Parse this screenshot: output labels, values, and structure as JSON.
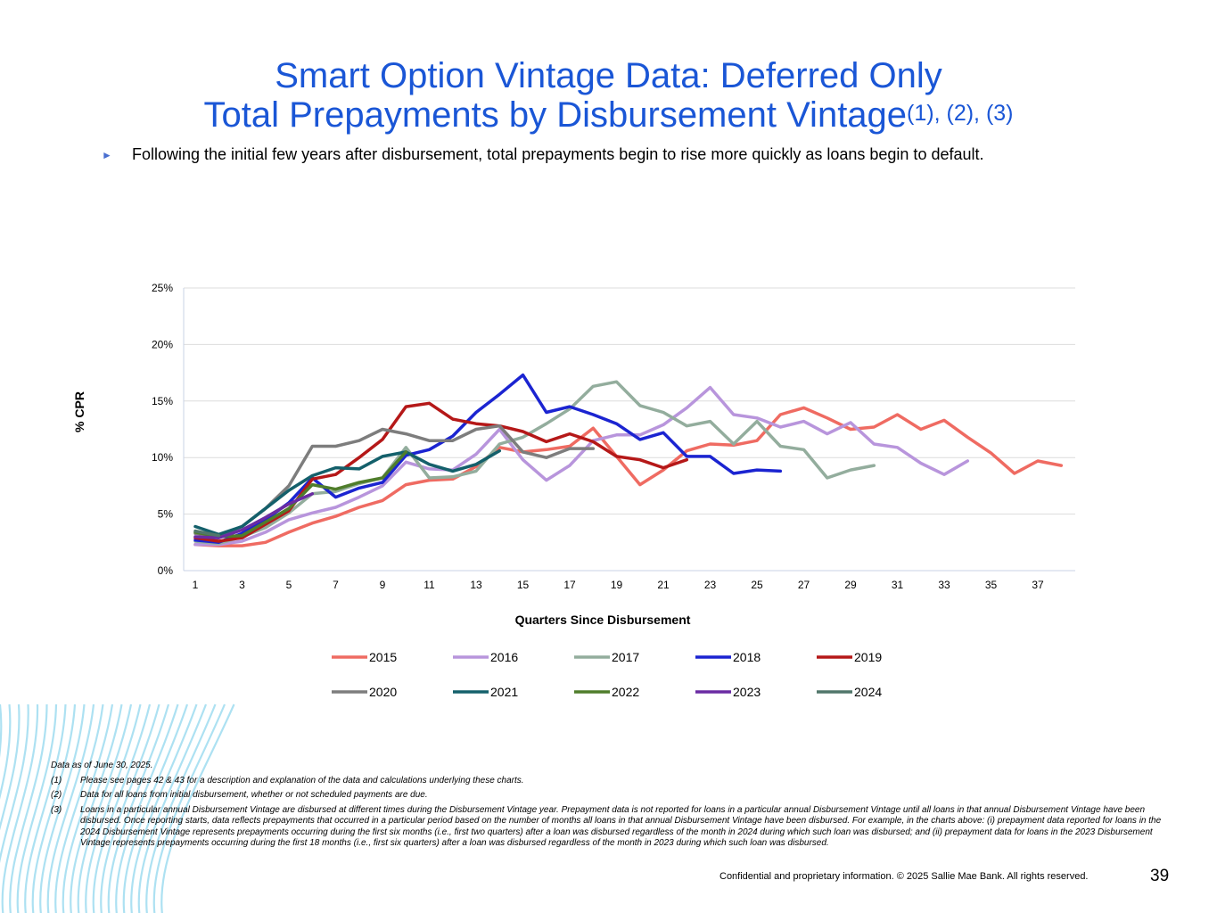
{
  "title_line1": "Smart Option Vintage Data: Deferred Only",
  "title_line2": "Total Prepayments by Disbursement Vintage",
  "title_superscript": "(1), (2), (3)",
  "bullet_text": "Following the initial few years after disbursement, total prepayments begin to rise more quickly as loans begin to default.",
  "chart_data": {
    "type": "line",
    "title": "",
    "xlabel": "Quarters Since Disbursement",
    "ylabel": "% CPR",
    "xlim": [
      1,
      38
    ],
    "ylim": [
      0,
      25
    ],
    "x_ticks": [
      "1",
      "3",
      "5",
      "7",
      "9",
      "11",
      "13",
      "15",
      "17",
      "19",
      "21",
      "23",
      "25",
      "27",
      "29",
      "31",
      "33",
      "35",
      "37"
    ],
    "y_ticks": [
      "0%",
      "5%",
      "10%",
      "15%",
      "20%",
      "25%"
    ],
    "y_tick_values": [
      0,
      5,
      10,
      15,
      20,
      25
    ],
    "grid": true,
    "legend": "bottom",
    "series": [
      {
        "name": "2015",
        "color": "#ef6b62",
        "values": [
          2.3,
          2.2,
          2.2,
          2.5,
          3.4,
          4.2,
          4.8,
          5.6,
          6.2,
          7.6,
          8.0,
          8.1,
          9.2,
          10.9,
          10.5,
          10.7,
          11.0,
          12.6,
          10.1,
          7.6,
          8.9,
          10.6,
          11.2,
          11.1,
          11.5,
          13.8,
          14.4,
          13.5,
          12.5,
          12.7,
          13.8,
          12.5,
          13.3,
          11.8,
          10.4,
          8.6,
          9.7,
          9.3
        ]
      },
      {
        "name": "2016",
        "color": "#b895dc",
        "values": [
          2.3,
          2.3,
          2.6,
          3.4,
          4.5,
          5.1,
          5.6,
          6.5,
          7.5,
          9.6,
          9.0,
          8.9,
          10.3,
          12.5,
          9.8,
          8.0,
          9.3,
          11.5,
          12.0,
          12.0,
          12.9,
          14.4,
          16.2,
          13.8,
          13.5,
          12.7,
          13.2,
          12.1,
          13.1,
          11.2,
          10.9,
          9.5,
          8.5,
          9.7
        ]
      },
      {
        "name": "2017",
        "color": "#93ad9d",
        "values": [
          2.6,
          2.4,
          3.0,
          3.8,
          5.1,
          6.8,
          7.0,
          7.7,
          8.2,
          10.9,
          8.2,
          8.3,
          8.8,
          11.2,
          11.8,
          13.0,
          14.3,
          16.3,
          16.7,
          14.6,
          14.0,
          12.8,
          13.2,
          11.2,
          13.2,
          11.0,
          10.7,
          8.2,
          8.9,
          9.3
        ]
      },
      {
        "name": "2018",
        "color": "#1b24d1",
        "values": [
          2.7,
          2.5,
          3.3,
          4.5,
          6.0,
          8.2,
          6.5,
          7.3,
          7.8,
          10.2,
          10.7,
          11.9,
          14.0,
          15.6,
          17.3,
          14.0,
          14.5,
          13.8,
          13.0,
          11.6,
          12.2,
          10.1,
          10.1,
          8.6,
          8.9,
          8.8
        ]
      },
      {
        "name": "2019",
        "color": "#b51818",
        "values": [
          2.9,
          2.6,
          2.9,
          4.1,
          5.3,
          8.1,
          8.5,
          10.0,
          11.6,
          14.5,
          14.8,
          13.4,
          13.0,
          12.8,
          12.3,
          11.4,
          12.1,
          11.4,
          10.1,
          9.8,
          9.1,
          9.8
        ]
      },
      {
        "name": "2020",
        "color": "#7d7d7d",
        "values": [
          3.3,
          3.1,
          3.9,
          5.5,
          7.5,
          11.0,
          11.0,
          11.5,
          12.5,
          12.1,
          11.5,
          11.5,
          12.5,
          12.8,
          10.5,
          10.0,
          10.8,
          10.8
        ]
      },
      {
        "name": "2021",
        "color": "#14606b",
        "values": [
          3.9,
          3.2,
          3.9,
          5.5,
          7.1,
          8.4,
          9.1,
          9.0,
          10.1,
          10.5,
          9.4,
          8.8,
          9.4,
          10.6
        ]
      },
      {
        "name": "2022",
        "color": "#4f7d2b",
        "values": [
          3.4,
          3.0,
          3.1,
          4.3,
          5.5,
          7.6,
          7.2,
          7.8,
          8.2,
          10.5
        ]
      },
      {
        "name": "2023",
        "color": "#6a2ba3",
        "values": [
          3.0,
          2.9,
          3.6,
          4.7,
          5.9,
          6.8
        ]
      },
      {
        "name": "2024",
        "color": "#50766a",
        "values": [
          3.5,
          3.1
        ]
      }
    ]
  },
  "footnotes": {
    "data_as_of": "Data as of  June 30, 2025.",
    "items": [
      {
        "num": "(1)",
        "text": "Please see pages 42 & 43 for a description and explanation of the data and calculations underlying these charts."
      },
      {
        "num": "(2)",
        "text": "Data for all loans from initial disbursement, whether or not scheduled payments are due."
      },
      {
        "num": "(3)",
        "text": "Loans in a particular annual Disbursement Vintage are disbursed at different times during the Disbursement Vintage year.  Prepayment data is not reported for loans in a particular annual Disbursement Vintage until all loans in that annual Disbursement Vintage have been disbursed.  Once reporting starts, data reflects prepayments that occurred in a particular period based on the number of months all loans in that annual Disbursement Vintage have been disbursed.  For example, in the charts above:  (i) prepayment data reported for loans in the 2024 Disbursement Vintage represents prepayments occurring during the first six months (i.e., first two quarters) after a loan was disbursed regardless of the month in 2024 during which such loan was disbursed; and (ii) prepayment data for loans in the 2023 Disbursement Vintage represents prepayments occurring during the first 18 months (i.e., first six quarters) after a loan was disbursed regardless of the month in 2023 during which such loan was disbursed."
      }
    ]
  },
  "confidential": "Confidential and proprietary information. © 2025 Sallie Mae Bank. All rights reserved.",
  "page_number": "39"
}
